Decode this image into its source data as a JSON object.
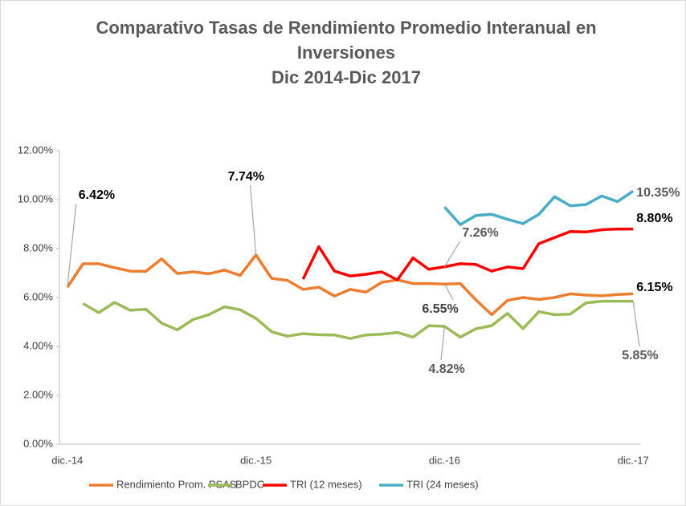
{
  "chart_data": {
    "type": "line",
    "title": "Comparativo Tasas de Rendimiento Promedio Interanual en Inversiones",
    "subtitle": "Dic 2014-Dic 2017",
    "categories": [
      "dic.-14",
      null,
      null,
      null,
      null,
      null,
      null,
      null,
      null,
      null,
      null,
      null,
      "dic.-15",
      null,
      null,
      null,
      null,
      null,
      null,
      null,
      null,
      null,
      null,
      null,
      "dic.-16",
      null,
      null,
      null,
      null,
      null,
      null,
      null,
      null,
      null,
      null,
      null,
      "dic.-17"
    ],
    "ylim": [
      0,
      12
    ],
    "yticks": [
      {
        "value": 0,
        "label": "0.00%"
      },
      {
        "value": 2,
        "label": "2.00%"
      },
      {
        "value": 4,
        "label": "4.00%"
      },
      {
        "value": 6,
        "label": "6.00%"
      },
      {
        "value": 8,
        "label": "8.00%"
      },
      {
        "value": 10,
        "label": "10.00%"
      },
      {
        "value": 12,
        "label": "12.00%"
      }
    ],
    "grid": false,
    "legend": "bottom",
    "series": [
      {
        "name": "Rendimiento Prom. PSAS",
        "color": "#ed7d31",
        "values": [
          6.42,
          7.38,
          7.38,
          7.22,
          7.08,
          7.07,
          7.58,
          6.98,
          7.05,
          6.97,
          7.12,
          6.9,
          7.74,
          6.78,
          6.7,
          6.33,
          6.42,
          6.06,
          6.33,
          6.22,
          6.62,
          6.72,
          6.57,
          6.57,
          6.55,
          6.57,
          5.9,
          5.3,
          5.88,
          6.0,
          5.92,
          6.0,
          6.15,
          6.1,
          6.07,
          6.12,
          6.15
        ],
        "value_labels": [
          "6.42%",
          null,
          null,
          null,
          null,
          null,
          null,
          null,
          null,
          null,
          null,
          null,
          "7.74%",
          null,
          null,
          null,
          null,
          null,
          null,
          null,
          null,
          null,
          null,
          null,
          "6.55%",
          null,
          null,
          null,
          null,
          null,
          null,
          null,
          null,
          null,
          null,
          null,
          "6.15%"
        ]
      },
      {
        "name": "BPDC",
        "color": "#9bbb59",
        "values": [
          null,
          5.75,
          5.38,
          5.8,
          5.48,
          5.52,
          4.95,
          4.68,
          5.1,
          5.3,
          5.62,
          5.5,
          5.15,
          4.6,
          4.42,
          4.52,
          4.48,
          4.47,
          4.32,
          4.47,
          4.5,
          4.57,
          4.38,
          4.85,
          4.82,
          4.38,
          4.72,
          4.85,
          5.35,
          4.73,
          5.42,
          5.3,
          5.32,
          5.78,
          5.85,
          5.85,
          5.85
        ],
        "value_labels": [
          null,
          null,
          null,
          null,
          null,
          null,
          null,
          null,
          null,
          null,
          null,
          null,
          null,
          null,
          null,
          null,
          null,
          null,
          null,
          null,
          null,
          null,
          null,
          null,
          "4.82%",
          null,
          null,
          null,
          null,
          null,
          null,
          null,
          null,
          null,
          null,
          null,
          "5.85%"
        ]
      },
      {
        "name": "TRI (12 meses)",
        "color": "#ff0000",
        "values": [
          null,
          null,
          null,
          null,
          null,
          null,
          null,
          null,
          null,
          null,
          null,
          null,
          null,
          null,
          null,
          6.75,
          8.08,
          7.08,
          6.88,
          6.95,
          7.05,
          6.72,
          7.62,
          7.15,
          7.26,
          7.38,
          7.35,
          7.08,
          7.25,
          7.18,
          8.2,
          8.45,
          8.7,
          8.68,
          8.77,
          8.8,
          8.8
        ],
        "value_labels": [
          null,
          null,
          null,
          null,
          null,
          null,
          null,
          null,
          null,
          null,
          null,
          null,
          null,
          null,
          null,
          null,
          null,
          null,
          null,
          null,
          null,
          null,
          null,
          null,
          "7.26%",
          null,
          null,
          null,
          null,
          null,
          null,
          null,
          null,
          null,
          null,
          null,
          "8.80%"
        ]
      },
      {
        "name": "TRI (24 meses)",
        "color": "#4bacc6",
        "values": [
          null,
          null,
          null,
          null,
          null,
          null,
          null,
          null,
          null,
          null,
          null,
          null,
          null,
          null,
          null,
          null,
          null,
          null,
          null,
          null,
          null,
          null,
          null,
          null,
          9.7,
          8.98,
          9.35,
          9.4,
          9.2,
          9.02,
          9.4,
          10.12,
          9.75,
          9.8,
          10.15,
          9.92,
          10.35
        ],
        "value_labels": [
          null,
          null,
          null,
          null,
          null,
          null,
          null,
          null,
          null,
          null,
          null,
          null,
          null,
          null,
          null,
          null,
          null,
          null,
          null,
          null,
          null,
          null,
          null,
          null,
          null,
          null,
          null,
          null,
          null,
          null,
          null,
          null,
          null,
          null,
          null,
          null,
          "10.35%"
        ]
      }
    ]
  }
}
